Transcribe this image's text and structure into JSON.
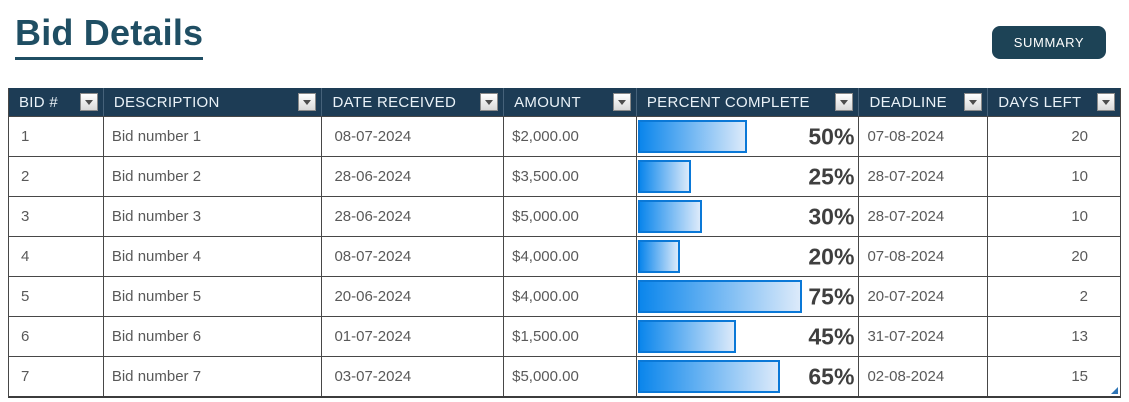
{
  "page": {
    "title": "Bid Details",
    "summary_button_label": "SUMMARY"
  },
  "icons": {
    "header_filter": "chevron-down-icon",
    "table_corner": "resize-handle-triangle"
  },
  "colors": {
    "accent_title": "#1f4e63",
    "button_bg": "#1d4356",
    "header_bg": "#1d3c55",
    "header_text": "#eaf2f8",
    "cell_text": "#595959",
    "percent_text": "#3f3f3f",
    "bar_gradient_start": "#0b86ec",
    "bar_gradient_end": "#dceafa",
    "bar_border": "#0a78d7",
    "grid_line": "#474747"
  },
  "table": {
    "columns": [
      {
        "key": "bid",
        "label": "BID #"
      },
      {
        "key": "description",
        "label": "DESCRIPTION"
      },
      {
        "key": "date-received",
        "label": "DATE RECEIVED"
      },
      {
        "key": "amount",
        "label": "AMOUNT"
      },
      {
        "key": "percent-complete",
        "label": "PERCENT COMPLETE"
      },
      {
        "key": "deadline",
        "label": "DEADLINE"
      },
      {
        "key": "days-left",
        "label": "DAYS LEFT"
      }
    ],
    "rows": [
      {
        "bid": "1",
        "description": "Bid number 1",
        "date_received": "08-07-2024",
        "amount": "$2,000.00",
        "percent_complete": 50,
        "percent_label": "50%",
        "deadline": "07-08-2024",
        "days_left": "20"
      },
      {
        "bid": "2",
        "description": "Bid number 2",
        "date_received": "28-06-2024",
        "amount": "$3,500.00",
        "percent_complete": 25,
        "percent_label": "25%",
        "deadline": "28-07-2024",
        "days_left": "10"
      },
      {
        "bid": "3",
        "description": "Bid number 3",
        "date_received": "28-06-2024",
        "amount": "$5,000.00",
        "percent_complete": 30,
        "percent_label": "30%",
        "deadline": "28-07-2024",
        "days_left": "10"
      },
      {
        "bid": "4",
        "description": "Bid number 4",
        "date_received": "08-07-2024",
        "amount": "$4,000.00",
        "percent_complete": 20,
        "percent_label": "20%",
        "deadline": "07-08-2024",
        "days_left": "20"
      },
      {
        "bid": "5",
        "description": "Bid number 5",
        "date_received": "20-06-2024",
        "amount": "$4,000.00",
        "percent_complete": 75,
        "percent_label": "75%",
        "deadline": "20-07-2024",
        "days_left": "2"
      },
      {
        "bid": "6",
        "description": "Bid number 6",
        "date_received": "01-07-2024",
        "amount": "$1,500.00",
        "percent_complete": 45,
        "percent_label": "45%",
        "deadline": "31-07-2024",
        "days_left": "13"
      },
      {
        "bid": "7",
        "description": "Bid number 7",
        "date_received": "03-07-2024",
        "amount": "$5,000.00",
        "percent_complete": 65,
        "percent_label": "65%",
        "deadline": "02-08-2024",
        "days_left": "15"
      }
    ]
  }
}
